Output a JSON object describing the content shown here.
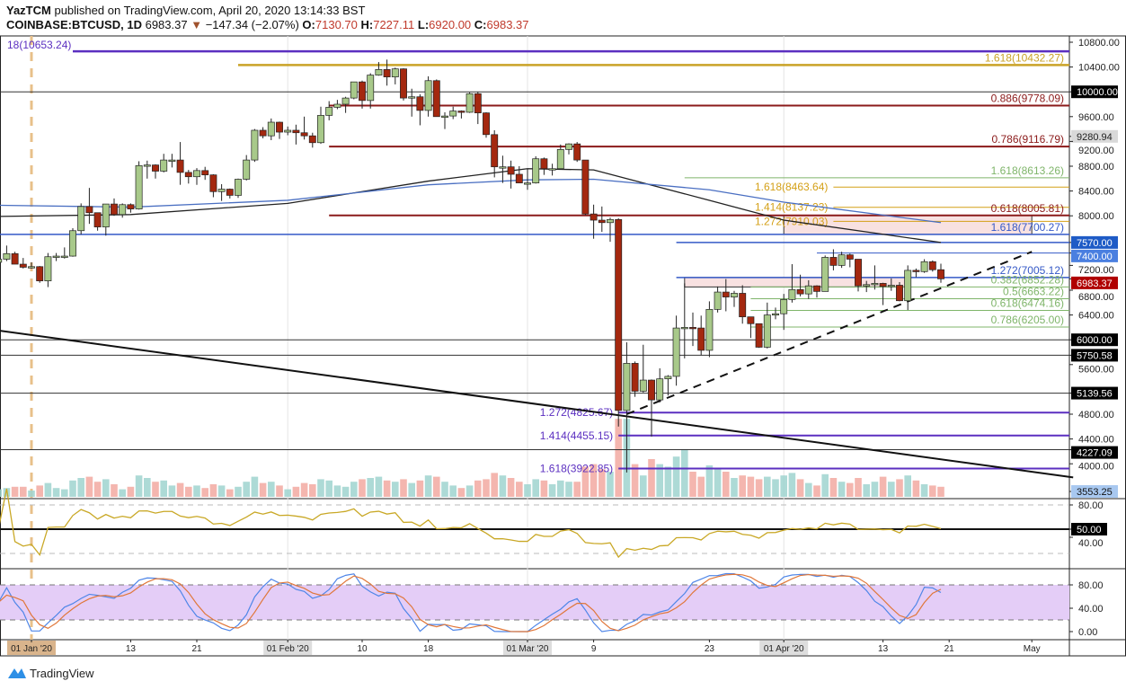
{
  "header": {
    "author": "YazTCM",
    "published": "published on TradingView.com, April 20, 2020 13:14:33 BST",
    "symbol": "COINBASE:BTCUSD, 1D",
    "last": "6983.37",
    "change": "−147.34 (−2.07%)",
    "o_label": "O:",
    "o": "7130.70",
    "h_label": "H:",
    "h": "7227.11",
    "l_label": "L:",
    "l": "6920.00",
    "c_label": "C:",
    "c": "6983.37",
    "direction_icon": "triangle-down-icon"
  },
  "footer": {
    "brand": "TradingView"
  },
  "chart_data": {
    "type": "candlestick",
    "ylim": [
      3553.25,
      10900
    ],
    "price_ticks": [
      "10800.00",
      "10400.00",
      "9600.00",
      "9200.00",
      "8800.00",
      "8400.00",
      "8000.00",
      "7200.00",
      "6800.00",
      "6400.00",
      "5600.00",
      "4800.00",
      "4400.00",
      "4000.00"
    ],
    "price_badges": [
      {
        "label": "10000.00",
        "price": 10000,
        "bg": "#000000",
        "fg": "#ffffff"
      },
      {
        "label": "9280.94",
        "price": 9280.94,
        "bg": "#d9d9d9",
        "fg": "#222222"
      },
      {
        "label": "7570.00",
        "price": 7570,
        "bg": "#1e5bc6",
        "fg": "#ffffff"
      },
      {
        "label": "7400.00",
        "price": 7400,
        "bg": "#4a7fe0",
        "fg": "#ffffff"
      },
      {
        "label": "6983.37",
        "price": 6983.37,
        "bg": "#b00000",
        "fg": "#ffffff"
      },
      {
        "label": "6000.00",
        "price": 6000,
        "bg": "#000000",
        "fg": "#ffffff"
      },
      {
        "label": "5750.58",
        "price": 5750.58,
        "bg": "#000000",
        "fg": "#ffffff"
      },
      {
        "label": "5139.56",
        "price": 5139.56,
        "bg": "#000000",
        "fg": "#ffffff"
      },
      {
        "label": "4227.09",
        "price": 4227.09,
        "bg": "#000000",
        "fg": "#ffffff"
      },
      {
        "label": "3553.25",
        "price": 3553.25,
        "bg": "#a8c8f0",
        "fg": "#111111"
      }
    ],
    "time_ticks": [
      {
        "label": "01 Jan '20",
        "date": "2020-01-01",
        "highlight": "#d9b48c"
      },
      {
        "label": "13",
        "date": "2020-01-13"
      },
      {
        "label": "21",
        "date": "2020-01-21"
      },
      {
        "label": "01 Feb '20",
        "date": "2020-02-01",
        "highlight": "#dddddd"
      },
      {
        "label": "10",
        "date": "2020-02-10"
      },
      {
        "label": "18",
        "date": "2020-02-18"
      },
      {
        "label": "01 Mar '20",
        "date": "2020-03-01",
        "highlight": "#dddddd"
      },
      {
        "label": "9",
        "date": "2020-03-09"
      },
      {
        "label": "23",
        "date": "2020-03-23"
      },
      {
        "label": "01 Apr '20",
        "date": "2020-04-01",
        "highlight": "#dddddd"
      },
      {
        "label": "13",
        "date": "2020-04-13"
      },
      {
        "label": "21",
        "date": "2020-04-21"
      },
      {
        "label": "May",
        "date": "2020-05-01"
      }
    ],
    "start_date": "2019-12-28",
    "candles": [
      [
        7250,
        7365,
        7210,
        7300
      ],
      [
        7300,
        7520,
        7270,
        7390
      ],
      [
        7390,
        7420,
        7220,
        7220
      ],
      [
        7220,
        7320,
        7150,
        7170
      ],
      [
        7170,
        7250,
        7150,
        7180
      ],
      [
        7180,
        7190,
        6920,
        6950
      ],
      [
        6950,
        7400,
        6850,
        7340
      ],
      [
        7340,
        7400,
        7270,
        7350
      ],
      [
        7350,
        7490,
        7310,
        7350
      ],
      [
        7350,
        7800,
        7340,
        7760
      ],
      [
        7760,
        8200,
        7700,
        8150
      ],
      [
        8150,
        8450,
        7870,
        8050
      ],
      [
        8050,
        8050,
        7760,
        7820
      ],
      [
        7820,
        8190,
        7680,
        8190
      ],
      [
        8190,
        8280,
        8000,
        8020
      ],
      [
        8020,
        8200,
        7970,
        8180
      ],
      [
        8180,
        8200,
        8050,
        8110
      ],
      [
        8110,
        8880,
        8100,
        8810
      ],
      [
        8810,
        8890,
        8600,
        8820
      ],
      [
        8820,
        8830,
        8600,
        8720
      ],
      [
        8720,
        9000,
        8700,
        8900
      ],
      [
        8900,
        9000,
        8780,
        8900
      ],
      [
        8900,
        9190,
        8500,
        8700
      ],
      [
        8700,
        8740,
        8520,
        8630
      ],
      [
        8630,
        8770,
        8500,
        8730
      ],
      [
        8730,
        8790,
        8580,
        8660
      ],
      [
        8660,
        8670,
        8300,
        8390
      ],
      [
        8390,
        8510,
        8240,
        8430
      ],
      [
        8430,
        8440,
        8280,
        8330
      ],
      [
        8330,
        8600,
        8290,
        8590
      ],
      [
        8590,
        8980,
        8570,
        8900
      ],
      [
        8900,
        9400,
        8870,
        9380
      ],
      [
        9380,
        9430,
        9250,
        9290
      ],
      [
        9290,
        9570,
        9220,
        9510
      ],
      [
        9510,
        9520,
        9240,
        9350
      ],
      [
        9350,
        9440,
        9300,
        9380
      ],
      [
        9380,
        9470,
        9150,
        9340
      ],
      [
        9340,
        9600,
        9230,
        9290
      ],
      [
        9290,
        9340,
        9100,
        9180
      ],
      [
        9180,
        9760,
        9160,
        9620
      ],
      [
        9620,
        9850,
        9540,
        9750
      ],
      [
        9750,
        9870,
        9720,
        9800
      ],
      [
        9800,
        9920,
        9660,
        9900
      ],
      [
        9900,
        10160,
        9880,
        10160
      ],
      [
        10160,
        10180,
        9730,
        9860
      ],
      [
        9860,
        10300,
        9730,
        10270
      ],
      [
        10270,
        10480,
        10260,
        10360
      ],
      [
        10360,
        10520,
        10100,
        10240
      ],
      [
        10240,
        10390,
        10120,
        10370
      ],
      [
        10370,
        10380,
        9860,
        9900
      ],
      [
        9900,
        10050,
        9600,
        9920
      ],
      [
        9920,
        9960,
        9460,
        9700
      ],
      [
        9700,
        10250,
        9600,
        10180
      ],
      [
        10180,
        10200,
        9600,
        9600
      ],
      [
        9600,
        9670,
        9400,
        9610
      ],
      [
        9610,
        9760,
        9560,
        9690
      ],
      [
        9690,
        9700,
        9570,
        9670
      ],
      [
        9670,
        9990,
        9660,
        9970
      ],
      [
        9970,
        10000,
        9480,
        9660
      ],
      [
        9660,
        9670,
        9260,
        9310
      ],
      [
        9310,
        9380,
        8620,
        8790
      ],
      [
        8790,
        8970,
        8530,
        8790
      ],
      [
        8790,
        8890,
        8440,
        8670
      ],
      [
        8670,
        8800,
        8530,
        8530
      ],
      [
        8530,
        8750,
        8420,
        8530
      ],
      [
        8530,
        8960,
        8520,
        8920
      ],
      [
        8920,
        8940,
        8660,
        8760
      ],
      [
        8760,
        8840,
        8650,
        8760
      ],
      [
        8760,
        9150,
        8760,
        9070
      ],
      [
        9070,
        9170,
        8990,
        9160
      ],
      [
        9160,
        9190,
        8870,
        8900
      ],
      [
        8900,
        8900,
        8010,
        8030
      ],
      [
        8030,
        8180,
        7630,
        7930
      ],
      [
        7930,
        8150,
        7740,
        7890
      ],
      [
        7890,
        7970,
        7580,
        7940
      ],
      [
        7940,
        7960,
        4600,
        4860
      ],
      [
        4860,
        5960,
        3860,
        5620
      ],
      [
        5620,
        5650,
        5080,
        5170
      ],
      [
        5170,
        5920,
        5150,
        5350
      ],
      [
        5350,
        5360,
        4440,
        5030
      ],
      [
        5030,
        5540,
        4990,
        5370
      ],
      [
        5370,
        5430,
        5100,
        5410
      ],
      [
        5410,
        6390,
        5260,
        6190
      ],
      [
        6190,
        6910,
        5700,
        6200
      ],
      [
        6200,
        6440,
        5900,
        6190
      ],
      [
        6190,
        6390,
        5750,
        5830
      ],
      [
        5830,
        6620,
        5720,
        6490
      ],
      [
        6490,
        6860,
        6440,
        6770
      ],
      [
        6770,
        6980,
        6460,
        6690
      ],
      [
        6690,
        6790,
        6530,
        6750
      ],
      [
        6750,
        6880,
        6260,
        6370
      ],
      [
        6370,
        6370,
        6030,
        6260
      ],
      [
        6260,
        6260,
        5870,
        5880
      ],
      [
        5880,
        6600,
        5860,
        6400
      ],
      [
        6400,
        6520,
        6330,
        6420
      ],
      [
        6420,
        6740,
        6160,
        6650
      ],
      [
        6650,
        7220,
        6600,
        6810
      ],
      [
        6810,
        7050,
        6700,
        6740
      ],
      [
        6740,
        6960,
        6660,
        6870
      ],
      [
        6870,
        6880,
        6680,
        6780
      ],
      [
        6780,
        7360,
        6780,
        7330
      ],
      [
        7330,
        7460,
        7120,
        7200
      ],
      [
        7200,
        7420,
        7160,
        7370
      ],
      [
        7370,
        7390,
        7170,
        7300
      ],
      [
        7300,
        7300,
        6780,
        6870
      ],
      [
        6870,
        6950,
        6770,
        6890
      ],
      [
        6890,
        7200,
        6810,
        6910
      ],
      [
        6910,
        6920,
        6560,
        6860
      ],
      [
        6860,
        6990,
        6790,
        6880
      ],
      [
        6880,
        6930,
        6620,
        6630
      ],
      [
        6630,
        7200,
        6480,
        7120
      ],
      [
        7120,
        7150,
        7010,
        7100
      ],
      [
        7100,
        7300,
        7080,
        7260
      ],
      [
        7260,
        7280,
        7100,
        7130
      ],
      [
        7130.7,
        7227.11,
        6920.0,
        6983.37
      ]
    ],
    "volume_thousands": [
      6,
      7,
      8,
      8,
      5,
      9,
      11,
      7,
      6,
      13,
      15,
      16,
      12,
      14,
      10,
      6,
      8,
      17,
      15,
      12,
      13,
      9,
      11,
      8,
      9,
      7,
      10,
      9,
      6,
      8,
      12,
      16,
      11,
      12,
      9,
      6,
      8,
      11,
      10,
      14,
      13,
      9,
      8,
      12,
      14,
      15,
      16,
      13,
      12,
      14,
      11,
      13,
      17,
      16,
      12,
      9,
      7,
      9,
      13,
      14,
      19,
      17,
      15,
      12,
      10,
      14,
      13,
      10,
      13,
      12,
      12,
      24,
      26,
      22,
      20,
      62,
      62,
      26,
      17,
      30,
      26,
      24,
      32,
      38,
      20,
      16,
      25,
      23,
      20,
      15,
      17,
      16,
      14,
      16,
      14,
      17,
      19,
      14,
      11,
      9,
      18,
      15,
      12,
      11,
      15,
      10,
      12,
      16,
      12,
      14,
      17,
      13,
      10,
      9,
      8
    ],
    "moving_averages": [
      {
        "color": "#222222",
        "points": [
          [
            "2019-12-28",
            7990
          ],
          [
            "2020-01-13",
            8020
          ],
          [
            "2020-02-01",
            8200
          ],
          [
            "2020-02-18",
            8560
          ],
          [
            "2020-03-01",
            8760
          ],
          [
            "2020-03-09",
            8740
          ],
          [
            "2020-03-23",
            8250
          ],
          [
            "2020-04-01",
            7930
          ],
          [
            "2020-04-20",
            7570
          ]
        ]
      },
      {
        "color": "#4a6fc2",
        "points": [
          [
            "2019-12-28",
            8170
          ],
          [
            "2020-01-13",
            8140
          ],
          [
            "2020-02-01",
            8250
          ],
          [
            "2020-02-18",
            8500
          ],
          [
            "2020-03-01",
            8580
          ],
          [
            "2020-03-09",
            8590
          ],
          [
            "2020-03-23",
            8420
          ],
          [
            "2020-04-01",
            8220
          ],
          [
            "2020-04-20",
            7890
          ]
        ]
      }
    ],
    "levels": [
      {
        "label": "18(10653.24)",
        "price": 10653.24,
        "color": "#5b2fc0",
        "from": "2020-01-06",
        "label_pos": "left-edge",
        "width": 2.5
      },
      {
        "label": "1.618(10432.27)",
        "price": 10432.27,
        "color": "#c9a227",
        "from": "2020-01-26",
        "label_pos": "right",
        "width": 2.5
      },
      {
        "label": "",
        "price": 10000,
        "color": "#333333",
        "from": "2019-12-28",
        "label_pos": "none",
        "width": 1
      },
      {
        "label": "0.886(9778.09)",
        "price": 9778.09,
        "color": "#8b1a1a",
        "from": "2020-02-06",
        "label_pos": "right",
        "width": 2
      },
      {
        "label": "0.786(9116.79)",
        "price": 9116.79,
        "color": "#8b1a1a",
        "from": "2020-02-06",
        "label_pos": "right",
        "width": 2
      },
      {
        "label": "1.618(8613.26)",
        "price": 8613.26,
        "color": "#7fb56a",
        "from": "2020-03-20",
        "label_pos": "right",
        "width": 1
      },
      {
        "label": "1.618(8463.64)",
        "price": 8463.64,
        "color": "#d4a017",
        "from": "2020-04-07",
        "label_pos": "before",
        "width": 1
      },
      {
        "label": "1.414(8137.23)",
        "price": 8137.23,
        "color": "#d4a017",
        "from": "2020-04-07",
        "label_pos": "before",
        "width": 1
      },
      {
        "label": "0.618(8005.81)",
        "price": 8005.81,
        "color": "#8b1a1a",
        "from": "2020-02-06",
        "label_pos": "right",
        "width": 2
      },
      {
        "label": "1.272(7910.03)",
        "price": 7910.03,
        "color": "#d4a017",
        "from": "2020-04-07",
        "label_pos": "before",
        "width": 1
      },
      {
        "label": "1.618(7700.27)",
        "price": 7700.27,
        "color": "#3559c7",
        "from": "2019-12-28",
        "label_pos": "right",
        "width": 1.5
      },
      {
        "label": "",
        "price": 7570,
        "color": "#3559c7",
        "from": "2020-03-19",
        "label_pos": "none",
        "width": 1.5
      },
      {
        "label": "",
        "price": 7400,
        "color": "#3559c7",
        "from": "2020-04-05",
        "label_pos": "none",
        "width": 1
      },
      {
        "label": "1.272(7005.12)",
        "price": 7005.12,
        "color": "#3559c7",
        "from": "2020-03-19",
        "label_pos": "right",
        "width": 1.5
      },
      {
        "label": "0.382(6852.28)",
        "price": 6852.28,
        "color": "#7fb56a",
        "from": "2020-03-28",
        "label_pos": "right",
        "width": 1
      },
      {
        "label": "0.5(6663.22)",
        "price": 6663.22,
        "color": "#7fb56a",
        "from": "2020-03-28",
        "label_pos": "right",
        "width": 1
      },
      {
        "label": "0.618(6474.16)",
        "price": 6474.16,
        "color": "#7fb56a",
        "from": "2020-03-28",
        "label_pos": "right",
        "width": 1
      },
      {
        "label": "0.786(6205.00)",
        "price": 6205,
        "color": "#7fb56a",
        "from": "2020-03-28",
        "label_pos": "right",
        "width": 1
      },
      {
        "label": "",
        "price": 6000,
        "color": "#333333",
        "from": "2019-12-28",
        "label_pos": "none",
        "width": 1
      },
      {
        "label": "",
        "price": 5750.58,
        "color": "#333333",
        "from": "2019-12-28",
        "label_pos": "none",
        "width": 1
      },
      {
        "label": "",
        "price": 5139.56,
        "color": "#333333",
        "from": "2019-12-28",
        "label_pos": "none",
        "width": 1
      },
      {
        "label": "1.272(4825.67)",
        "price": 4825.67,
        "color": "#5b2fc0",
        "from": "2020-03-12",
        "label_pos": "before",
        "width": 2
      },
      {
        "label": "1.414(4455.15)",
        "price": 4455.15,
        "color": "#5b2fc0",
        "from": "2020-03-12",
        "label_pos": "before",
        "width": 2
      },
      {
        "label": "",
        "price": 4227.09,
        "color": "#333333",
        "from": "2019-12-28",
        "label_pos": "none",
        "width": 1
      },
      {
        "label": "1.618(3922.85)",
        "price": 3922.85,
        "color": "#5b2fc0",
        "from": "2020-03-12",
        "label_pos": "before",
        "width": 2
      }
    ],
    "zones": [
      {
        "from": "2020-04-01",
        "to": "2020-05-01",
        "top": 8005.81,
        "bottom": 7700,
        "color": "#f8e1e1"
      },
      {
        "from": "2020-03-20",
        "to": "2020-04-16",
        "top": 7005.12,
        "bottom": 6852.28,
        "color": "#f8e1e1"
      }
    ],
    "trendlines": [
      {
        "p1": [
          "2019-12-28",
          6150
        ],
        "p2": [
          "2020-05-06",
          3780
        ],
        "color": "#111111",
        "dashed": false
      },
      {
        "p1": [
          "2020-03-13",
          4800
        ],
        "p2": [
          "2020-05-01",
          7420
        ],
        "color": "#111111",
        "dashed": true
      }
    ],
    "rsi": {
      "ticks": [
        "80.00",
        "40.00"
      ],
      "badge": "50.00",
      "color": "#c9a826",
      "levels": [
        80,
        50,
        20
      ]
    },
    "stoch_rsi": {
      "ticks": [
        "80.00",
        "40.00",
        "0.00"
      ],
      "k_color": "#4f86e8",
      "d_color": "#e0773a",
      "band": [
        20,
        80
      ],
      "band_color": "#e4cdf7"
    }
  }
}
